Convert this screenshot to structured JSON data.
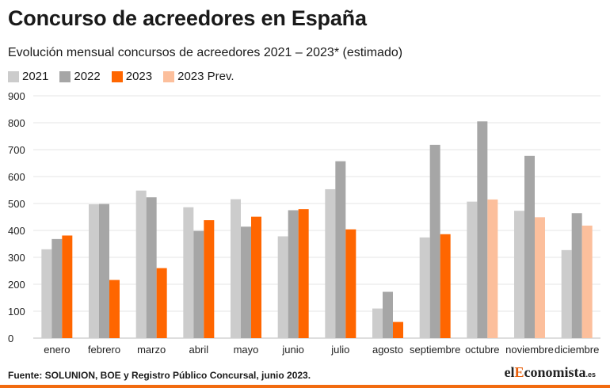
{
  "title": "Concurso de acreedores en España",
  "subtitle": "Evolución mensual concursos de acreedores 2021 – 2023* (estimado)",
  "source": "Fuente: SOLUNION, BOE y Registro Público Concursal, junio 2023.",
  "logo": {
    "part1": "el",
    "part2": "E",
    "part3": "conomista",
    "part4": ".es"
  },
  "chart_data": {
    "type": "bar",
    "title": "Concurso de acreedores en España",
    "subtitle": "Evolución mensual concursos de acreedores 2021 – 2023* (estimado)",
    "xlabel": "",
    "ylabel": "",
    "ylim": [
      0,
      900
    ],
    "yticks": [
      0,
      100,
      200,
      300,
      400,
      500,
      600,
      700,
      800,
      900
    ],
    "grid": true,
    "legend_position": "top-left",
    "categories": [
      "enero",
      "febrero",
      "marzo",
      "abril",
      "mayo",
      "junio",
      "julio",
      "agosto",
      "septiembre",
      "octubre",
      "noviembre",
      "diciembre"
    ],
    "series": [
      {
        "name": "2021",
        "color": "#cccccc",
        "values": [
          330,
          497,
          548,
          486,
          516,
          378,
          553,
          110,
          374,
          507,
          473,
          327
        ]
      },
      {
        "name": "2022",
        "color": "#a6a6a6",
        "values": [
          368,
          498,
          523,
          398,
          414,
          475,
          657,
          172,
          718,
          805,
          677,
          464
        ]
      },
      {
        "name": "2023",
        "color": "#ff6600",
        "values": [
          381,
          216,
          260,
          438,
          451,
          479,
          404,
          60,
          386,
          null,
          null,
          null
        ]
      },
      {
        "name": "2023 Prev.",
        "color": "#fcbf9c",
        "values": [
          null,
          null,
          null,
          null,
          null,
          null,
          null,
          null,
          null,
          515,
          449,
          418
        ]
      }
    ]
  }
}
